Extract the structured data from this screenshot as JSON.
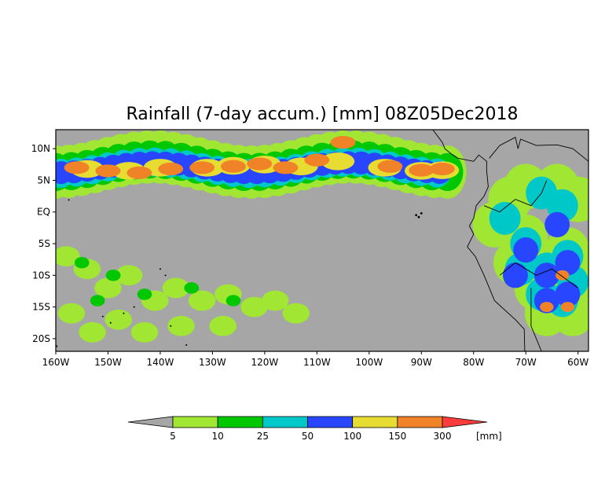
{
  "title": "Rainfall (7-day accum.) [mm] 08Z05Dec2018",
  "map": {
    "lon_range": [
      -160,
      -58
    ],
    "lat_range": [
      -22,
      13
    ],
    "lat_ticks": [
      {
        "value": 10,
        "label": "10N"
      },
      {
        "value": 5,
        "label": "5N"
      },
      {
        "value": 0,
        "label": "EQ"
      },
      {
        "value": -5,
        "label": "5S"
      },
      {
        "value": -10,
        "label": "10S"
      },
      {
        "value": -15,
        "label": "15S"
      },
      {
        "value": -20,
        "label": "20S"
      }
    ],
    "lon_ticks": [
      {
        "value": -160,
        "label": "160W"
      },
      {
        "value": -150,
        "label": "150W"
      },
      {
        "value": -140,
        "label": "140W"
      },
      {
        "value": -130,
        "label": "130W"
      },
      {
        "value": -120,
        "label": "120W"
      },
      {
        "value": -110,
        "label": "110W"
      },
      {
        "value": -100,
        "label": "100W"
      },
      {
        "value": -90,
        "label": "90W"
      },
      {
        "value": -80,
        "label": "80W"
      },
      {
        "value": -70,
        "label": "70W"
      },
      {
        "value": -60,
        "label": "60W"
      }
    ],
    "background_color": "#a6a6a6"
  },
  "colorbar": {
    "levels": [
      "5",
      "10",
      "25",
      "50",
      "100",
      "150",
      "300"
    ],
    "unit": "[mm]",
    "colors": [
      "#a6a6a6",
      "#a0e632",
      "#00c800",
      "#00c8c8",
      "#2846ff",
      "#e6dc32",
      "#f08228",
      "#fa3c3c"
    ]
  },
  "colors": {
    "c5": "#a0e632",
    "c10": "#00c800",
    "c25": "#00c8c8",
    "c50": "#2846ff",
    "c100": "#e6dc32",
    "c150": "#f08228",
    "c300": "#fa3c3c"
  }
}
